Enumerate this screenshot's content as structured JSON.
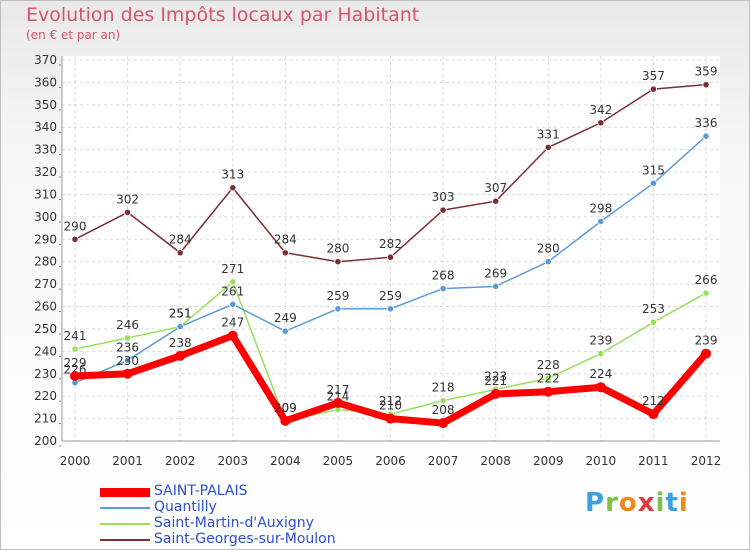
{
  "header": {
    "title": "Evolution des Impôts locaux par Habitant",
    "subtitle": "(en € et par an)"
  },
  "logo": {
    "text": "Proxiti",
    "colors": [
      "#3aa0e0",
      "#7cc242",
      "#f08a1c",
      "#e23a3a",
      "#7cc242",
      "#3aa0e0",
      "#f08a1c"
    ]
  },
  "chart_data": {
    "type": "line",
    "x": [
      "2000",
      "2001",
      "2002",
      "2003",
      "2004",
      "2005",
      "2006",
      "2007",
      "2008",
      "2009",
      "2010",
      "2011",
      "2012"
    ],
    "ylim": [
      200,
      370
    ],
    "yticks": [
      "200",
      "210",
      "220",
      "230",
      "240",
      "250",
      "260",
      "270",
      "280",
      "290",
      "300",
      "310",
      "320",
      "330",
      "340",
      "350",
      "360",
      "370"
    ],
    "grid": "horizontal-dashed",
    "legend_position": "bottom-left",
    "series": [
      {
        "name": "SAINT-PALAIS",
        "color": "#ff0000",
        "values": [
          229,
          230,
          238,
          247,
          209,
          217,
          210,
          208,
          221,
          222,
          224,
          212,
          239
        ]
      },
      {
        "name": "Quantilly",
        "color": "#5b9bd5",
        "values": [
          226,
          236,
          251,
          261,
          249,
          259,
          259,
          268,
          269,
          280,
          298,
          315,
          336
        ]
      },
      {
        "name": "Saint-Martin-d'Auxigny",
        "color": "#99e05b",
        "values": [
          241,
          246,
          251,
          271,
          209,
          214,
          212,
          218,
          223,
          228,
          239,
          253,
          266
        ]
      },
      {
        "name": "Saint-Georges-sur-Moulon",
        "color": "#7a2e36",
        "values": [
          290,
          302,
          284,
          313,
          284,
          280,
          282,
          303,
          307,
          331,
          342,
          357,
          359
        ]
      }
    ]
  }
}
